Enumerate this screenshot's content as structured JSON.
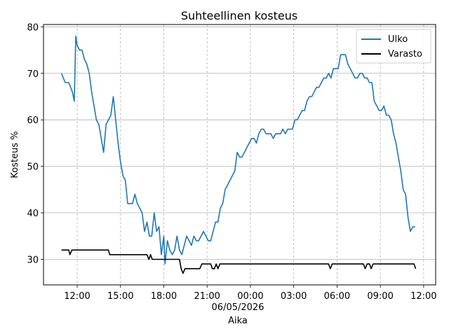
{
  "chart_data": {
    "type": "line",
    "title": "Suhteellinen kosteus",
    "xlabel": "Aika",
    "ylabel": "Kosteus %",
    "date_label": "06/05/2026",
    "xlim": [
      "05/05/2026 09:40",
      "06/05/2026 12:50"
    ],
    "ylim": [
      24.5,
      80.5
    ],
    "x_ticks": [
      "05/05/2026 12:00",
      "05/05/2026 15:00",
      "05/05/2026 18:00",
      "05/05/2026 21:00",
      "06/05/2026 00:00",
      "06/05/2026 03:00",
      "06/05/2026 06:00",
      "06/05/2026 09:00",
      "06/05/2026 12:00"
    ],
    "x_tick_labels": [
      "12:00",
      "15:00",
      "18:00",
      "21:00",
      "00:00",
      "03:00",
      "06:00",
      "09:00",
      "12:00"
    ],
    "y_ticks": [
      30,
      40,
      50,
      60,
      70,
      80
    ],
    "y_tick_labels": [
      "30",
      "40",
      "50",
      "60",
      "70",
      "80"
    ],
    "grid": {
      "y": "solid",
      "x": "dashed"
    },
    "legend_position": "top-right",
    "series": [
      {
        "name": "Ulko",
        "color": "#1f77b4",
        "points": [
          [
            "05/05/2026 10:55",
            70
          ],
          [
            "05/05/2026 11:10",
            68
          ],
          [
            "05/05/2026 11:25",
            68
          ],
          [
            "05/05/2026 11:40",
            66
          ],
          [
            "05/05/2026 11:48",
            64
          ],
          [
            "05/05/2026 11:54",
            78
          ],
          [
            "05/05/2026 12:00",
            76
          ],
          [
            "05/05/2026 12:10",
            75
          ],
          [
            "05/05/2026 12:20",
            75
          ],
          [
            "05/05/2026 12:30",
            73
          ],
          [
            "05/05/2026 12:40",
            72
          ],
          [
            "05/05/2026 12:50",
            70
          ],
          [
            "05/05/2026 13:00",
            66
          ],
          [
            "05/05/2026 13:10",
            63
          ],
          [
            "05/05/2026 13:20",
            60
          ],
          [
            "05/05/2026 13:30",
            59
          ],
          [
            "05/05/2026 13:40",
            56
          ],
          [
            "05/05/2026 13:50",
            53
          ],
          [
            "05/05/2026 14:00",
            59
          ],
          [
            "05/05/2026 14:10",
            60
          ],
          [
            "05/05/2026 14:20",
            61
          ],
          [
            "05/05/2026 14:30",
            65
          ],
          [
            "05/05/2026 14:40",
            60
          ],
          [
            "05/05/2026 14:50",
            55
          ],
          [
            "05/05/2026 15:00",
            51
          ],
          [
            "05/05/2026 15:10",
            48
          ],
          [
            "05/05/2026 15:20",
            47
          ],
          [
            "05/05/2026 15:30",
            42
          ],
          [
            "05/05/2026 15:40",
            42
          ],
          [
            "05/05/2026 15:50",
            42
          ],
          [
            "05/05/2026 16:00",
            44
          ],
          [
            "05/05/2026 16:10",
            42
          ],
          [
            "05/05/2026 16:20",
            41
          ],
          [
            "05/05/2026 16:30",
            40
          ],
          [
            "05/05/2026 16:40",
            36
          ],
          [
            "05/05/2026 16:50",
            38
          ],
          [
            "05/05/2026 17:00",
            35
          ],
          [
            "05/05/2026 17:10",
            35
          ],
          [
            "05/05/2026 17:20",
            40
          ],
          [
            "05/05/2026 17:30",
            36
          ],
          [
            "05/05/2026 17:40",
            37
          ],
          [
            "05/05/2026 17:50",
            31
          ],
          [
            "05/05/2026 18:00",
            35
          ],
          [
            "05/05/2026 18:05",
            29
          ],
          [
            "05/05/2026 18:15",
            34
          ],
          [
            "05/05/2026 18:25",
            32
          ],
          [
            "05/05/2026 18:35",
            31
          ],
          [
            "05/05/2026 18:45",
            32
          ],
          [
            "05/05/2026 18:55",
            35
          ],
          [
            "05/05/2026 19:05",
            32
          ],
          [
            "05/05/2026 19:15",
            31
          ],
          [
            "05/05/2026 19:25",
            33
          ],
          [
            "05/05/2026 19:35",
            35
          ],
          [
            "05/05/2026 19:45",
            34
          ],
          [
            "05/05/2026 19:55",
            33
          ],
          [
            "05/05/2026 20:05",
            35
          ],
          [
            "05/05/2026 20:15",
            34
          ],
          [
            "05/05/2026 20:25",
            34
          ],
          [
            "05/05/2026 20:35",
            35
          ],
          [
            "05/05/2026 20:45",
            36
          ],
          [
            "05/05/2026 20:55",
            35
          ],
          [
            "05/05/2026 21:05",
            34
          ],
          [
            "05/05/2026 21:15",
            34
          ],
          [
            "05/05/2026 21:25",
            36
          ],
          [
            "05/05/2026 21:35",
            38
          ],
          [
            "05/05/2026 21:45",
            38
          ],
          [
            "05/05/2026 21:55",
            41
          ],
          [
            "05/05/2026 22:05",
            42
          ],
          [
            "05/05/2026 22:15",
            45
          ],
          [
            "05/05/2026 22:25",
            46
          ],
          [
            "05/05/2026 22:35",
            47
          ],
          [
            "05/05/2026 22:45",
            48
          ],
          [
            "05/05/2026 22:55",
            49
          ],
          [
            "05/05/2026 23:05",
            53
          ],
          [
            "05/05/2026 23:15",
            52
          ],
          [
            "05/05/2026 23:25",
            52
          ],
          [
            "05/05/2026 23:35",
            53
          ],
          [
            "05/05/2026 23:45",
            54
          ],
          [
            "05/05/2026 23:55",
            55
          ],
          [
            "06/05/2026 00:05",
            56
          ],
          [
            "06/05/2026 00:15",
            56
          ],
          [
            "06/05/2026 00:25",
            55
          ],
          [
            "06/05/2026 00:35",
            57
          ],
          [
            "06/05/2026 00:45",
            58
          ],
          [
            "06/05/2026 00:55",
            58
          ],
          [
            "06/05/2026 01:05",
            57
          ],
          [
            "06/05/2026 01:15",
            57
          ],
          [
            "06/05/2026 01:25",
            57
          ],
          [
            "06/05/2026 01:35",
            56
          ],
          [
            "06/05/2026 01:45",
            57
          ],
          [
            "06/05/2026 01:55",
            57
          ],
          [
            "06/05/2026 02:05",
            57
          ],
          [
            "06/05/2026 02:15",
            58
          ],
          [
            "06/05/2026 02:25",
            57
          ],
          [
            "06/05/2026 02:35",
            58
          ],
          [
            "06/05/2026 02:45",
            58
          ],
          [
            "06/05/2026 02:55",
            58
          ],
          [
            "06/05/2026 03:05",
            60
          ],
          [
            "06/05/2026 03:15",
            60
          ],
          [
            "06/05/2026 03:25",
            61
          ],
          [
            "06/05/2026 03:35",
            62
          ],
          [
            "06/05/2026 03:45",
            62
          ],
          [
            "06/05/2026 03:55",
            64
          ],
          [
            "06/05/2026 04:05",
            65
          ],
          [
            "06/05/2026 04:15",
            65
          ],
          [
            "06/05/2026 04:25",
            66
          ],
          [
            "06/05/2026 04:35",
            67
          ],
          [
            "06/05/2026 04:45",
            67
          ],
          [
            "06/05/2026 04:55",
            68
          ],
          [
            "06/05/2026 05:05",
            69
          ],
          [
            "06/05/2026 05:15",
            69
          ],
          [
            "06/05/2026 05:25",
            70
          ],
          [
            "06/05/2026 05:35",
            69
          ],
          [
            "06/05/2026 05:45",
            71
          ],
          [
            "06/05/2026 05:55",
            71
          ],
          [
            "06/05/2026 06:05",
            71
          ],
          [
            "06/05/2026 06:15",
            74
          ],
          [
            "06/05/2026 06:25",
            74
          ],
          [
            "06/05/2026 06:35",
            74
          ],
          [
            "06/05/2026 06:45",
            72
          ],
          [
            "06/05/2026 06:55",
            71
          ],
          [
            "06/05/2026 07:05",
            70
          ],
          [
            "06/05/2026 07:15",
            69
          ],
          [
            "06/05/2026 07:25",
            69
          ],
          [
            "06/05/2026 07:35",
            70
          ],
          [
            "06/05/2026 07:45",
            70
          ],
          [
            "06/05/2026 07:55",
            69
          ],
          [
            "06/05/2026 08:05",
            69
          ],
          [
            "06/05/2026 08:15",
            68
          ],
          [
            "06/05/2026 08:25",
            68
          ],
          [
            "06/05/2026 08:35",
            64
          ],
          [
            "06/05/2026 08:45",
            63
          ],
          [
            "06/05/2026 08:55",
            62
          ],
          [
            "06/05/2026 09:05",
            62
          ],
          [
            "06/05/2026 09:15",
            63
          ],
          [
            "06/05/2026 09:25",
            61
          ],
          [
            "06/05/2026 09:35",
            61
          ],
          [
            "06/05/2026 09:45",
            60
          ],
          [
            "06/05/2026 09:55",
            57
          ],
          [
            "06/05/2026 10:05",
            55
          ],
          [
            "06/05/2026 10:15",
            52
          ],
          [
            "06/05/2026 10:25",
            49
          ],
          [
            "06/05/2026 10:35",
            45
          ],
          [
            "06/05/2026 10:45",
            44
          ],
          [
            "06/05/2026 10:55",
            39
          ],
          [
            "06/05/2026 11:05",
            36
          ],
          [
            "06/05/2026 11:15",
            37
          ],
          [
            "06/05/2026 11:25",
            37
          ]
        ]
      },
      {
        "name": "Varasto",
        "color": "#000000",
        "points": [
          [
            "05/05/2026 10:55",
            32
          ],
          [
            "05/05/2026 11:25",
            32
          ],
          [
            "05/05/2026 11:30",
            31
          ],
          [
            "05/05/2026 11:38",
            32
          ],
          [
            "05/05/2026 14:10",
            32
          ],
          [
            "05/05/2026 14:15",
            31
          ],
          [
            "05/05/2026 16:50",
            31
          ],
          [
            "05/05/2026 16:58",
            30
          ],
          [
            "05/05/2026 17:05",
            31
          ],
          [
            "05/05/2026 17:12",
            30
          ],
          [
            "05/05/2026 19:05",
            30
          ],
          [
            "05/05/2026 19:12",
            28
          ],
          [
            "05/05/2026 19:20",
            27
          ],
          [
            "05/05/2026 19:28",
            28
          ],
          [
            "05/05/2026 20:30",
            28
          ],
          [
            "05/05/2026 20:38",
            29
          ],
          [
            "05/05/2026 21:15",
            29
          ],
          [
            "05/05/2026 21:22",
            28
          ],
          [
            "05/05/2026 21:30",
            28
          ],
          [
            "05/05/2026 21:38",
            29
          ],
          [
            "05/05/2026 21:45",
            28
          ],
          [
            "05/05/2026 21:53",
            29
          ],
          [
            "06/05/2026 05:25",
            29
          ],
          [
            "06/05/2026 05:32",
            28
          ],
          [
            "06/05/2026 05:40",
            29
          ],
          [
            "06/05/2026 07:50",
            29
          ],
          [
            "06/05/2026 07:57",
            28
          ],
          [
            "06/05/2026 08:05",
            29
          ],
          [
            "06/05/2026 08:15",
            29
          ],
          [
            "06/05/2026 08:22",
            28
          ],
          [
            "06/05/2026 08:30",
            29
          ],
          [
            "06/05/2026 11:20",
            29
          ],
          [
            "06/05/2026 11:27",
            28
          ]
        ]
      }
    ]
  }
}
